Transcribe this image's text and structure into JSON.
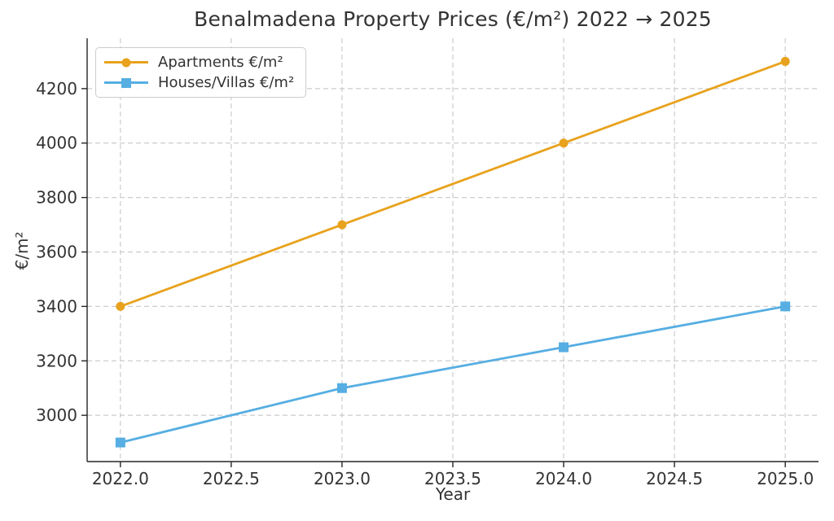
{
  "chart_data": {
    "type": "line",
    "title": "Benalmadena Property Prices (€/m²) 2022 → 2025",
    "xlabel": "Year",
    "ylabel": "€/m²",
    "x": [
      2022,
      2023,
      2024,
      2025
    ],
    "series": [
      {
        "id": "apartments",
        "name": "Apartments €/m²",
        "values": [
          3400,
          3700,
          4000,
          4300
        ],
        "color": "#E8A21D",
        "marker": "circle"
      },
      {
        "id": "houses-villas",
        "name": "Houses/Villas €/m²",
        "values": [
          2900,
          3100,
          3250,
          3400
        ],
        "color": "#56AEE2",
        "marker": "square"
      }
    ],
    "xtick_values": [
      2022.0,
      2022.5,
      2023.0,
      2023.5,
      2024.0,
      2024.5,
      2025.0
    ],
    "xtick_labels": [
      "2022.0",
      "2022.5",
      "2023.0",
      "2023.5",
      "2024.0",
      "2024.5",
      "2025.0"
    ],
    "ytick_values": [
      3000,
      3200,
      3400,
      3600,
      3800,
      4000,
      4200
    ],
    "ytick_labels": [
      "3000",
      "3200",
      "3400",
      "3600",
      "3800",
      "4000",
      "4200"
    ],
    "xlim": [
      2021.85,
      2025.15
    ],
    "ylim": [
      2830,
      4385
    ],
    "grid": true,
    "grid_style": "dashed",
    "legend_position": "upper left",
    "colors": {
      "grid": "#cccccc",
      "axis": "#262626",
      "text": "#333333",
      "background": "#ffffff"
    }
  }
}
